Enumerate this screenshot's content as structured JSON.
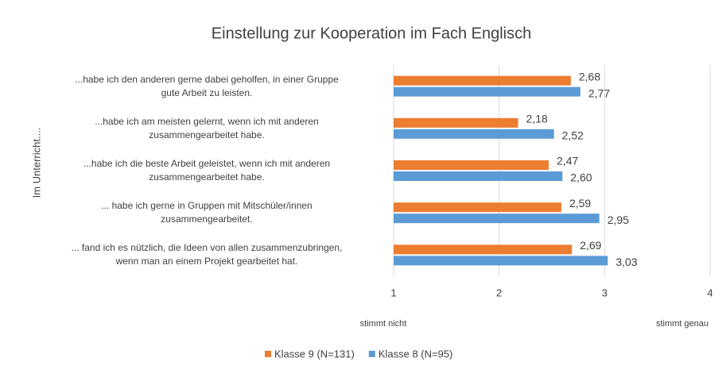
{
  "chart_data": {
    "type": "hbar",
    "title": "Einstellung zur Kooperation im Fach Englisch",
    "y_label": "Im Unterricht....",
    "categories": [
      "...habe ich den anderen gerne dabei geholfen, in einer Gruppe\ngute Arbeit zu leisten.",
      "...habe ich am meisten gelernt, wenn ich mit anderen\nzusammengearbeitet habe.",
      "...habe ich die beste Arbeit geleistet, wenn ich mit anderen\nzusammengearbeitet habe.",
      "... habe ich gerne in Gruppen mit Mitschüler/innen\nzusammengearbeitet.",
      "... fand ich es nützlich, die Ideen von allen zusammenzubringen,\nwenn man an einem Projekt gearbeitet hat."
    ],
    "series": [
      {
        "name": "Klasse 9 (N=131)",
        "color": "#ed7d31",
        "values": [
          2.68,
          2.18,
          2.47,
          2.59,
          2.69
        ],
        "value_labels": [
          "2,68",
          "2,18",
          "2,47",
          "2,59",
          "2,69"
        ]
      },
      {
        "name": "Klasse 8 (N=95)",
        "color": "#5b9bd5",
        "values": [
          2.77,
          2.52,
          2.6,
          2.95,
          3.03
        ],
        "value_labels": [
          "2,77",
          "2,52",
          "2,60",
          "2,95",
          "3,03"
        ]
      }
    ],
    "xlim": [
      1,
      4
    ],
    "xticks": [
      1,
      2,
      3,
      4
    ],
    "grid": true,
    "annotations": [
      "stimmt nicht",
      "stimmt genau"
    ],
    "legend": "bottom"
  }
}
